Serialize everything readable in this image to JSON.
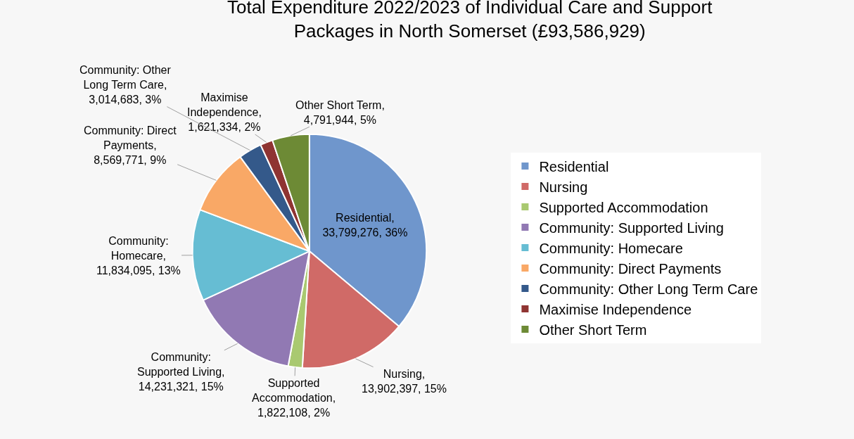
{
  "chart_data": {
    "type": "pie",
    "title": "Total Expenditure 2022/2023 of Individual Care and Support Packages in North Somerset (£93,586,929)",
    "categories": [
      "Residential",
      "Nursing",
      "Supported Accommodation",
      "Community: Supported Living",
      "Community: Homecare",
      "Community: Direct Payments",
      "Community: Other Long Term Care",
      "Maximise Independence",
      "Other Short Term"
    ],
    "values": [
      33799276,
      13902397,
      1822108,
      14231321,
      11834095,
      8569771,
      3014683,
      1621334,
      4791944
    ],
    "value_labels": [
      "Residential, 33,799,276, 36%",
      "Nursing, 13,902,397, 15%",
      "Supported Accommodation, 1,822,108, 2%",
      "Community: Supported Living, 14,231,321, 15%",
      "Community: Homecare, 11,834,095, 13%",
      "Community: Direct Payments, 8,569,771, 9%",
      "Community: Other Long Term Care, 3,014,683, 3%",
      "Maximise Independence, 1,621,334, 2%",
      "Other Short Term, 4,791,944, 5%"
    ],
    "colors": [
      "#6f96cc",
      "#d06a67",
      "#a9c970",
      "#9179b3",
      "#66bdd3",
      "#f9a866",
      "#34598a",
      "#8f3432",
      "#6d8a35"
    ],
    "legend": "right"
  }
}
